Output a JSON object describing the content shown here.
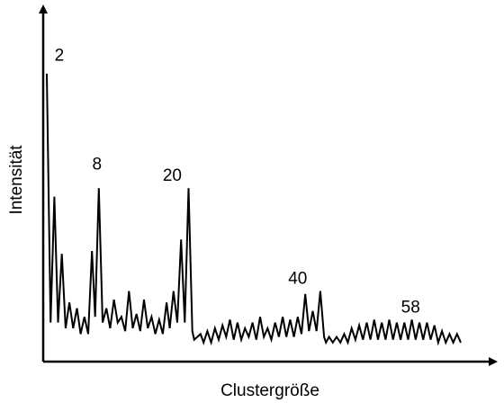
{
  "chart_data": {
    "type": "line",
    "xlabel": "Clustergröße",
    "ylabel": "Intensität",
    "xlim": [
      0,
      66
    ],
    "ylim": [
      0,
      100
    ],
    "x_tick_labels": [],
    "y_tick_labels": [],
    "grid": false,
    "annotations": [
      {
        "text": "2",
        "x": 2,
        "y": 97
      },
      {
        "text": "8",
        "x": 8,
        "y": 59
      },
      {
        "text": "20",
        "x": 20,
        "y": 55
      },
      {
        "text": "40",
        "x": 40,
        "y": 19
      },
      {
        "text": "58",
        "x": 58,
        "y": 9
      }
    ],
    "series": [
      {
        "points": [
          [
            0,
            95
          ],
          [
            0.6,
            8
          ],
          [
            1.2,
            52
          ],
          [
            1.8,
            8
          ],
          [
            2.4,
            32
          ],
          [
            3,
            6
          ],
          [
            3.6,
            15
          ],
          [
            4.2,
            6
          ],
          [
            4.8,
            13
          ],
          [
            5.4,
            4
          ],
          [
            6,
            10
          ],
          [
            6.6,
            4
          ],
          [
            7.2,
            33
          ],
          [
            7.7,
            10
          ],
          [
            8.3,
            55
          ],
          [
            8.9,
            8
          ],
          [
            9.5,
            13
          ],
          [
            10.1,
            6
          ],
          [
            10.7,
            16
          ],
          [
            11.3,
            8
          ],
          [
            11.9,
            10
          ],
          [
            12.5,
            5
          ],
          [
            13.1,
            19
          ],
          [
            13.7,
            6
          ],
          [
            14.3,
            11
          ],
          [
            14.9,
            5
          ],
          [
            15.5,
            16
          ],
          [
            16.1,
            6
          ],
          [
            16.7,
            10
          ],
          [
            17.3,
            4
          ],
          [
            17.9,
            9
          ],
          [
            18.5,
            4
          ],
          [
            19.1,
            15
          ],
          [
            19.6,
            6
          ],
          [
            20.2,
            19
          ],
          [
            20.8,
            8
          ],
          [
            21.4,
            37
          ],
          [
            22,
            8
          ],
          [
            22.6,
            55
          ],
          [
            23.2,
            5
          ],
          [
            23.5,
            2
          ],
          [
            24,
            3
          ],
          [
            24.5,
            4
          ],
          [
            25,
            1
          ],
          [
            25.6,
            5
          ],
          [
            26.2,
            1
          ],
          [
            26.8,
            6
          ],
          [
            27.4,
            2
          ],
          [
            28,
            7
          ],
          [
            28.6,
            3
          ],
          [
            29.2,
            9
          ],
          [
            29.8,
            2
          ],
          [
            30.4,
            8
          ],
          [
            31,
            2
          ],
          [
            31.6,
            6
          ],
          [
            32.2,
            3
          ],
          [
            32.8,
            8
          ],
          [
            33.4,
            2
          ],
          [
            34,
            10
          ],
          [
            34.6,
            3
          ],
          [
            35.2,
            6
          ],
          [
            35.8,
            2
          ],
          [
            36.4,
            8
          ],
          [
            37,
            3
          ],
          [
            37.6,
            10
          ],
          [
            38.2,
            3
          ],
          [
            38.8,
            9
          ],
          [
            39.4,
            3
          ],
          [
            40,
            10
          ],
          [
            40.6,
            4
          ],
          [
            41.2,
            18
          ],
          [
            41.8,
            5
          ],
          [
            42.4,
            12
          ],
          [
            43,
            5
          ],
          [
            43.6,
            19
          ],
          [
            44.2,
            3
          ],
          [
            44.5,
            1
          ],
          [
            45,
            3
          ],
          [
            45.6,
            1
          ],
          [
            46.2,
            3
          ],
          [
            46.8,
            1
          ],
          [
            47.4,
            4
          ],
          [
            48,
            1
          ],
          [
            48.6,
            6
          ],
          [
            49.2,
            2
          ],
          [
            49.8,
            7
          ],
          [
            50.4,
            2
          ],
          [
            51,
            8
          ],
          [
            51.6,
            2
          ],
          [
            52.2,
            9
          ],
          [
            52.8,
            2
          ],
          [
            53.4,
            8
          ],
          [
            54,
            2
          ],
          [
            54.6,
            9
          ],
          [
            55.2,
            2
          ],
          [
            55.8,
            8
          ],
          [
            56.4,
            2
          ],
          [
            57,
            8
          ],
          [
            57.6,
            2
          ],
          [
            58.2,
            9
          ],
          [
            58.8,
            2
          ],
          [
            59.4,
            8
          ],
          [
            60,
            2
          ],
          [
            60.6,
            8
          ],
          [
            61.2,
            2
          ],
          [
            61.8,
            7
          ],
          [
            62.4,
            1
          ],
          [
            63,
            5
          ],
          [
            63.6,
            1
          ],
          [
            64.2,
            4
          ],
          [
            64.8,
            1
          ],
          [
            65.4,
            4
          ],
          [
            66,
            1
          ]
        ]
      }
    ]
  }
}
